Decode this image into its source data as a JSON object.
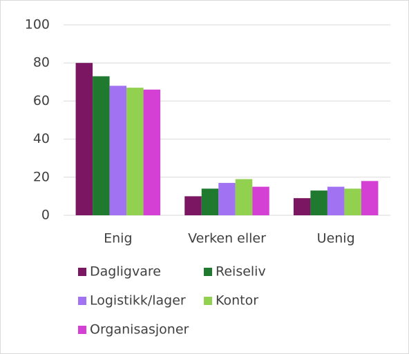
{
  "chart_data": {
    "type": "bar",
    "categories": [
      "Enig",
      "Verken eller",
      "Uenig"
    ],
    "series": [
      {
        "name": "Dagligvare",
        "color": "#7b1762",
        "values": [
          80,
          10,
          9
        ]
      },
      {
        "name": "Reiseliv",
        "color": "#1f7a30",
        "values": [
          73,
          14,
          13
        ]
      },
      {
        "name": "Logistikk/lager",
        "color": "#a172f2",
        "values": [
          68,
          17,
          15
        ]
      },
      {
        "name": "Kontor",
        "color": "#92d050",
        "values": [
          67,
          19,
          14
        ]
      },
      {
        "name": "Organisasjoner",
        "color": "#d43fd4",
        "values": [
          66,
          15,
          18
        ]
      }
    ],
    "ylim": [
      0,
      100
    ],
    "yticks": [
      0,
      20,
      40,
      60,
      80,
      100
    ],
    "grid": true,
    "legend": "bottom"
  }
}
